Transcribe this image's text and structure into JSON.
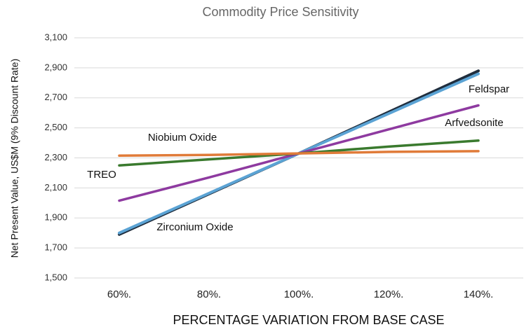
{
  "chart_data": {
    "type": "line",
    "title": "Commodity Price Sensitivity",
    "x_label": "PERCENTAGE VARIATION FROM BASE CASE",
    "y_label": "Net Present Value, US$M (9% Discount Rate)",
    "categories": [
      "60%.",
      "80%.",
      "100%.",
      "120%.",
      "140%."
    ],
    "series": [
      {
        "name": "Zirconium Oxide",
        "color": "#1f2d3d",
        "values": [
          1790,
          2060,
          2330,
          2605,
          2880
        ]
      },
      {
        "name": "Feldspar",
        "color": "#5ba3d4",
        "values": [
          1800,
          2065,
          2330,
          2595,
          2860
        ]
      },
      {
        "name": "Arfvedsonite",
        "color": "#8e3aa0",
        "values": [
          2015,
          2170,
          2330,
          2490,
          2650
        ]
      },
      {
        "name": "TREO",
        "color": "#3a7a2e",
        "values": [
          2250,
          2290,
          2330,
          2375,
          2415
        ]
      },
      {
        "name": "Niobium Oxide",
        "color": "#e07b39",
        "values": [
          2315,
          2320,
          2330,
          2340,
          2345
        ]
      }
    ],
    "ylim": [
      1500,
      3100
    ],
    "yticks": [
      {
        "value": 1500,
        "label": "1,500"
      },
      {
        "value": 1700,
        "label": "1,700"
      },
      {
        "value": 1900,
        "label": "1,900"
      },
      {
        "value": 2100,
        "label": "2,100"
      },
      {
        "value": 2300,
        "label": "2,300"
      },
      {
        "value": 2500,
        "label": "2,500"
      },
      {
        "value": 2700,
        "label": "2,700"
      },
      {
        "value": 2900,
        "label": "2,900"
      },
      {
        "value": 3100,
        "label": "3,100"
      }
    ],
    "grid": true
  }
}
